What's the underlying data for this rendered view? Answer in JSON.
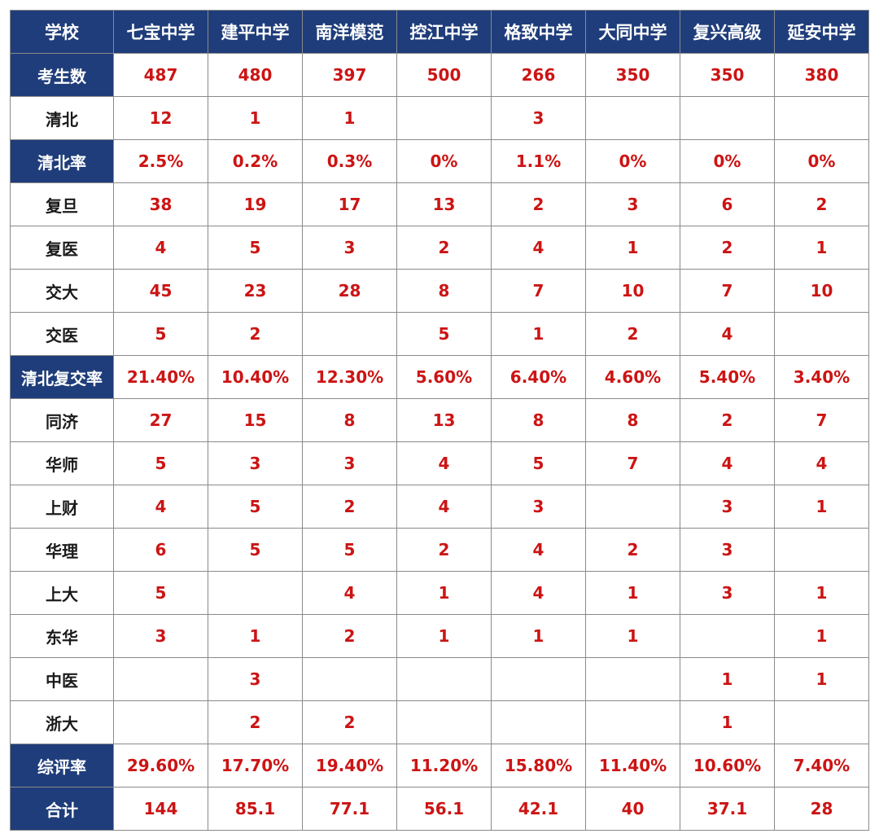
{
  "colors": {
    "header_bg": "#1f3d7a",
    "header_text": "#ffffff",
    "value_text": "#cc1414",
    "label_text": "#1a1a1a",
    "grid": "#8a8a8a"
  },
  "chart_data": {
    "type": "table",
    "corner": "学校",
    "columns": [
      "七宝中学",
      "建平中学",
      "南洋模范",
      "控江中学",
      "格致中学",
      "大同中学",
      "复兴高级",
      "延安中学"
    ],
    "rows": [
      {
        "label": "考生数",
        "highlight": true,
        "values": [
          "487",
          "480",
          "397",
          "500",
          "266",
          "350",
          "350",
          "380"
        ]
      },
      {
        "label": "清北",
        "highlight": false,
        "values": [
          "12",
          "1",
          "1",
          "",
          "3",
          "",
          "",
          ""
        ]
      },
      {
        "label": "清北率",
        "highlight": true,
        "values": [
          "2.5%",
          "0.2%",
          "0.3%",
          "0%",
          "1.1%",
          "0%",
          "0%",
          "0%"
        ]
      },
      {
        "label": "复旦",
        "highlight": false,
        "values": [
          "38",
          "19",
          "17",
          "13",
          "2",
          "3",
          "6",
          "2"
        ]
      },
      {
        "label": "复医",
        "highlight": false,
        "values": [
          "4",
          "5",
          "3",
          "2",
          "4",
          "1",
          "2",
          "1"
        ]
      },
      {
        "label": "交大",
        "highlight": false,
        "values": [
          "45",
          "23",
          "28",
          "8",
          "7",
          "10",
          "7",
          "10"
        ]
      },
      {
        "label": "交医",
        "highlight": false,
        "values": [
          "5",
          "2",
          "",
          "5",
          "1",
          "2",
          "4",
          ""
        ]
      },
      {
        "label": "清北复交率",
        "highlight": true,
        "values": [
          "21.40%",
          "10.40%",
          "12.30%",
          "5.60%",
          "6.40%",
          "4.60%",
          "5.40%",
          "3.40%"
        ]
      },
      {
        "label": "同济",
        "highlight": false,
        "values": [
          "27",
          "15",
          "8",
          "13",
          "8",
          "8",
          "2",
          "7"
        ]
      },
      {
        "label": "华师",
        "highlight": false,
        "values": [
          "5",
          "3",
          "3",
          "4",
          "5",
          "7",
          "4",
          "4"
        ]
      },
      {
        "label": "上财",
        "highlight": false,
        "values": [
          "4",
          "5",
          "2",
          "4",
          "3",
          "",
          "3",
          "1"
        ]
      },
      {
        "label": "华理",
        "highlight": false,
        "values": [
          "6",
          "5",
          "5",
          "2",
          "4",
          "2",
          "3",
          ""
        ]
      },
      {
        "label": "上大",
        "highlight": false,
        "values": [
          "5",
          "",
          "4",
          "1",
          "4",
          "1",
          "3",
          "1"
        ]
      },
      {
        "label": "东华",
        "highlight": false,
        "values": [
          "3",
          "1",
          "2",
          "1",
          "1",
          "1",
          "",
          "1"
        ]
      },
      {
        "label": "中医",
        "highlight": false,
        "values": [
          "",
          "3",
          "",
          "",
          "",
          "",
          "1",
          "1"
        ]
      },
      {
        "label": "浙大",
        "highlight": false,
        "values": [
          "",
          "2",
          "2",
          "",
          "",
          "",
          "1",
          ""
        ]
      },
      {
        "label": "综评率",
        "highlight": true,
        "values": [
          "29.60%",
          "17.70%",
          "19.40%",
          "11.20%",
          "15.80%",
          "11.40%",
          "10.60%",
          "7.40%"
        ]
      },
      {
        "label": "合计",
        "highlight": true,
        "values": [
          "144",
          "85.1",
          "77.1",
          "56.1",
          "42.1",
          "40",
          "37.1",
          "28"
        ]
      }
    ]
  }
}
